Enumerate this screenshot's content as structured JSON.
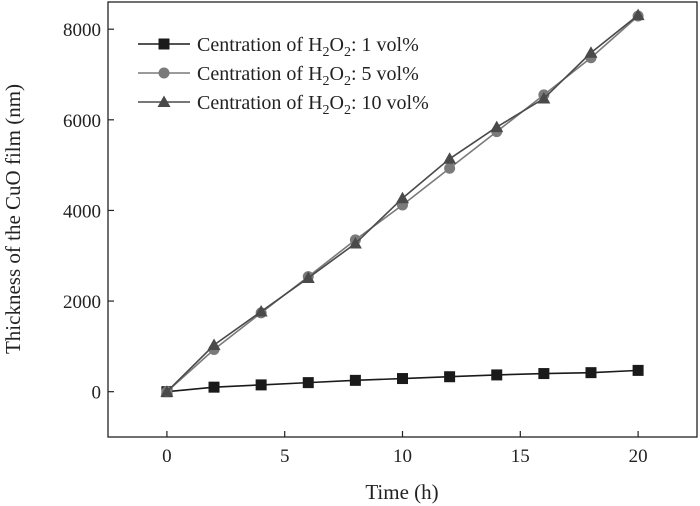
{
  "chart_data": {
    "type": "line",
    "xlabel": "Time (h)",
    "ylabel": "Thickness of the CuO film (nm)",
    "xlim": [
      -2.5,
      22.5
    ],
    "ylim": [
      -1000,
      8600
    ],
    "xticks": [
      0,
      5,
      10,
      15,
      20
    ],
    "yticks": [
      0,
      2000,
      4000,
      6000,
      8000
    ],
    "x_tick_labels": [
      "0",
      "5",
      "10",
      "15",
      "20"
    ],
    "y_tick_labels": [
      "0",
      "2000",
      "4000",
      "6000",
      "8000"
    ],
    "grid": false,
    "legend_position": "top-left",
    "x": [
      0,
      2,
      4,
      6,
      8,
      10,
      12,
      14,
      16,
      18,
      20
    ],
    "series": [
      {
        "name": "Centration of H2O2: 1 vol%",
        "legend": {
          "before": "Centration of H",
          "sub1": "2",
          "mid": "O",
          "sub2": "2",
          "after": ": 1 vol%"
        },
        "marker": "square",
        "color": "#1a1a1a",
        "values": [
          0,
          100,
          150,
          200,
          250,
          290,
          330,
          370,
          400,
          420,
          470
        ]
      },
      {
        "name": "Centration of H2O2: 5 vol%",
        "legend": {
          "before": "Centration of H",
          "sub1": "2",
          "mid": "O",
          "sub2": "2",
          "after": ": 5 vol%"
        },
        "marker": "circle",
        "color": "#7a7a7a",
        "values": [
          0,
          930,
          1740,
          2540,
          3350,
          4120,
          4930,
          5740,
          6550,
          7370,
          8290
        ]
      },
      {
        "name": "Centration of H2O2: 10 vol%",
        "legend": {
          "before": "Centration of H",
          "sub1": "2",
          "mid": "O",
          "sub2": "2",
          "after": ": 10 vol%"
        },
        "marker": "triangle",
        "color": "#4a4a4a",
        "values": [
          0,
          1030,
          1770,
          2510,
          3270,
          4270,
          5140,
          5840,
          6470,
          7480,
          8310
        ]
      }
    ]
  }
}
